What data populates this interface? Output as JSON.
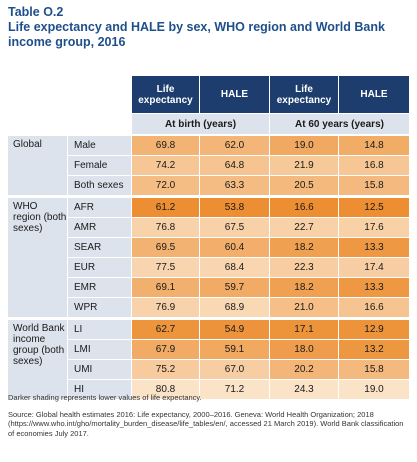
{
  "title": {
    "number": "Table O.2",
    "text": "Life expectancy and HALE by sex, WHO region and World Bank income group, 2016"
  },
  "header": {
    "columns": [
      "Life expectancy",
      "HALE",
      "Life expectancy",
      "HALE"
    ],
    "sub": [
      "At birth (years)",
      "At 60 years (years)"
    ]
  },
  "groups": [
    {
      "label": "Global",
      "rows": [
        {
          "label": "Male",
          "values": [
            "69.8",
            "62.0",
            "19.0",
            "14.8"
          ]
        },
        {
          "label": "Female",
          "values": [
            "74.2",
            "64.8",
            "21.9",
            "16.8"
          ]
        },
        {
          "label": "Both sexes",
          "values": [
            "72.0",
            "63.3",
            "20.5",
            "15.8"
          ]
        }
      ]
    },
    {
      "label": "WHO region (both sexes)",
      "rows": [
        {
          "label": "AFR",
          "values": [
            "61.2",
            "53.8",
            "16.6",
            "12.5"
          ]
        },
        {
          "label": "AMR",
          "values": [
            "76.8",
            "67.5",
            "22.7",
            "17.6"
          ]
        },
        {
          "label": "SEAR",
          "values": [
            "69.5",
            "60.4",
            "18.2",
            "13.3"
          ]
        },
        {
          "label": "EUR",
          "values": [
            "77.5",
            "68.4",
            "22.3",
            "17.4"
          ]
        },
        {
          "label": "EMR",
          "values": [
            "69.1",
            "59.7",
            "18.2",
            "13.3"
          ]
        },
        {
          "label": "WPR",
          "values": [
            "76.9",
            "68.9",
            "21.0",
            "16.6"
          ]
        }
      ]
    },
    {
      "label": "World Bank income group (both sexes)",
      "rows": [
        {
          "label": "LI",
          "values": [
            "62.7",
            "54.9",
            "17.1",
            "12.9"
          ]
        },
        {
          "label": "LMI",
          "values": [
            "67.9",
            "59.1",
            "18.0",
            "13.2"
          ]
        },
        {
          "label": "UMI",
          "values": [
            "75.2",
            "67.0",
            "20.2",
            "15.8"
          ]
        },
        {
          "label": "HI",
          "values": [
            "80.8",
            "71.2",
            "24.3",
            "19.0"
          ]
        }
      ]
    }
  ],
  "shading_colors": {
    "darkest": "#ec8e31",
    "lightest": "#fbe3c8"
  },
  "note": "Darker shading represents lower values of life expectancy.",
  "source": "Source: Global health estimates 2016: Life expectancy, 2000–2016. Geneva: World Health Organization; 2018 (https://www.who.int/gho/mortality_burden_disease/life_tables/en/, accessed 21 March 2019). World Bank classification of economies July 2017."
}
